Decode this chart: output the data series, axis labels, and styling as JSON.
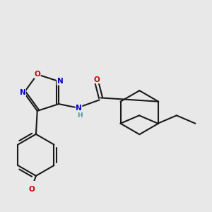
{
  "bg_color": "#e8e8e8",
  "atom_colors": {
    "C": "#1a1a1a",
    "N": "#0000cc",
    "O": "#cc0000",
    "H": "#4a9a9a"
  },
  "bond_color": "#1a1a1a",
  "bond_width": 1.5,
  "dbo": 0.08
}
